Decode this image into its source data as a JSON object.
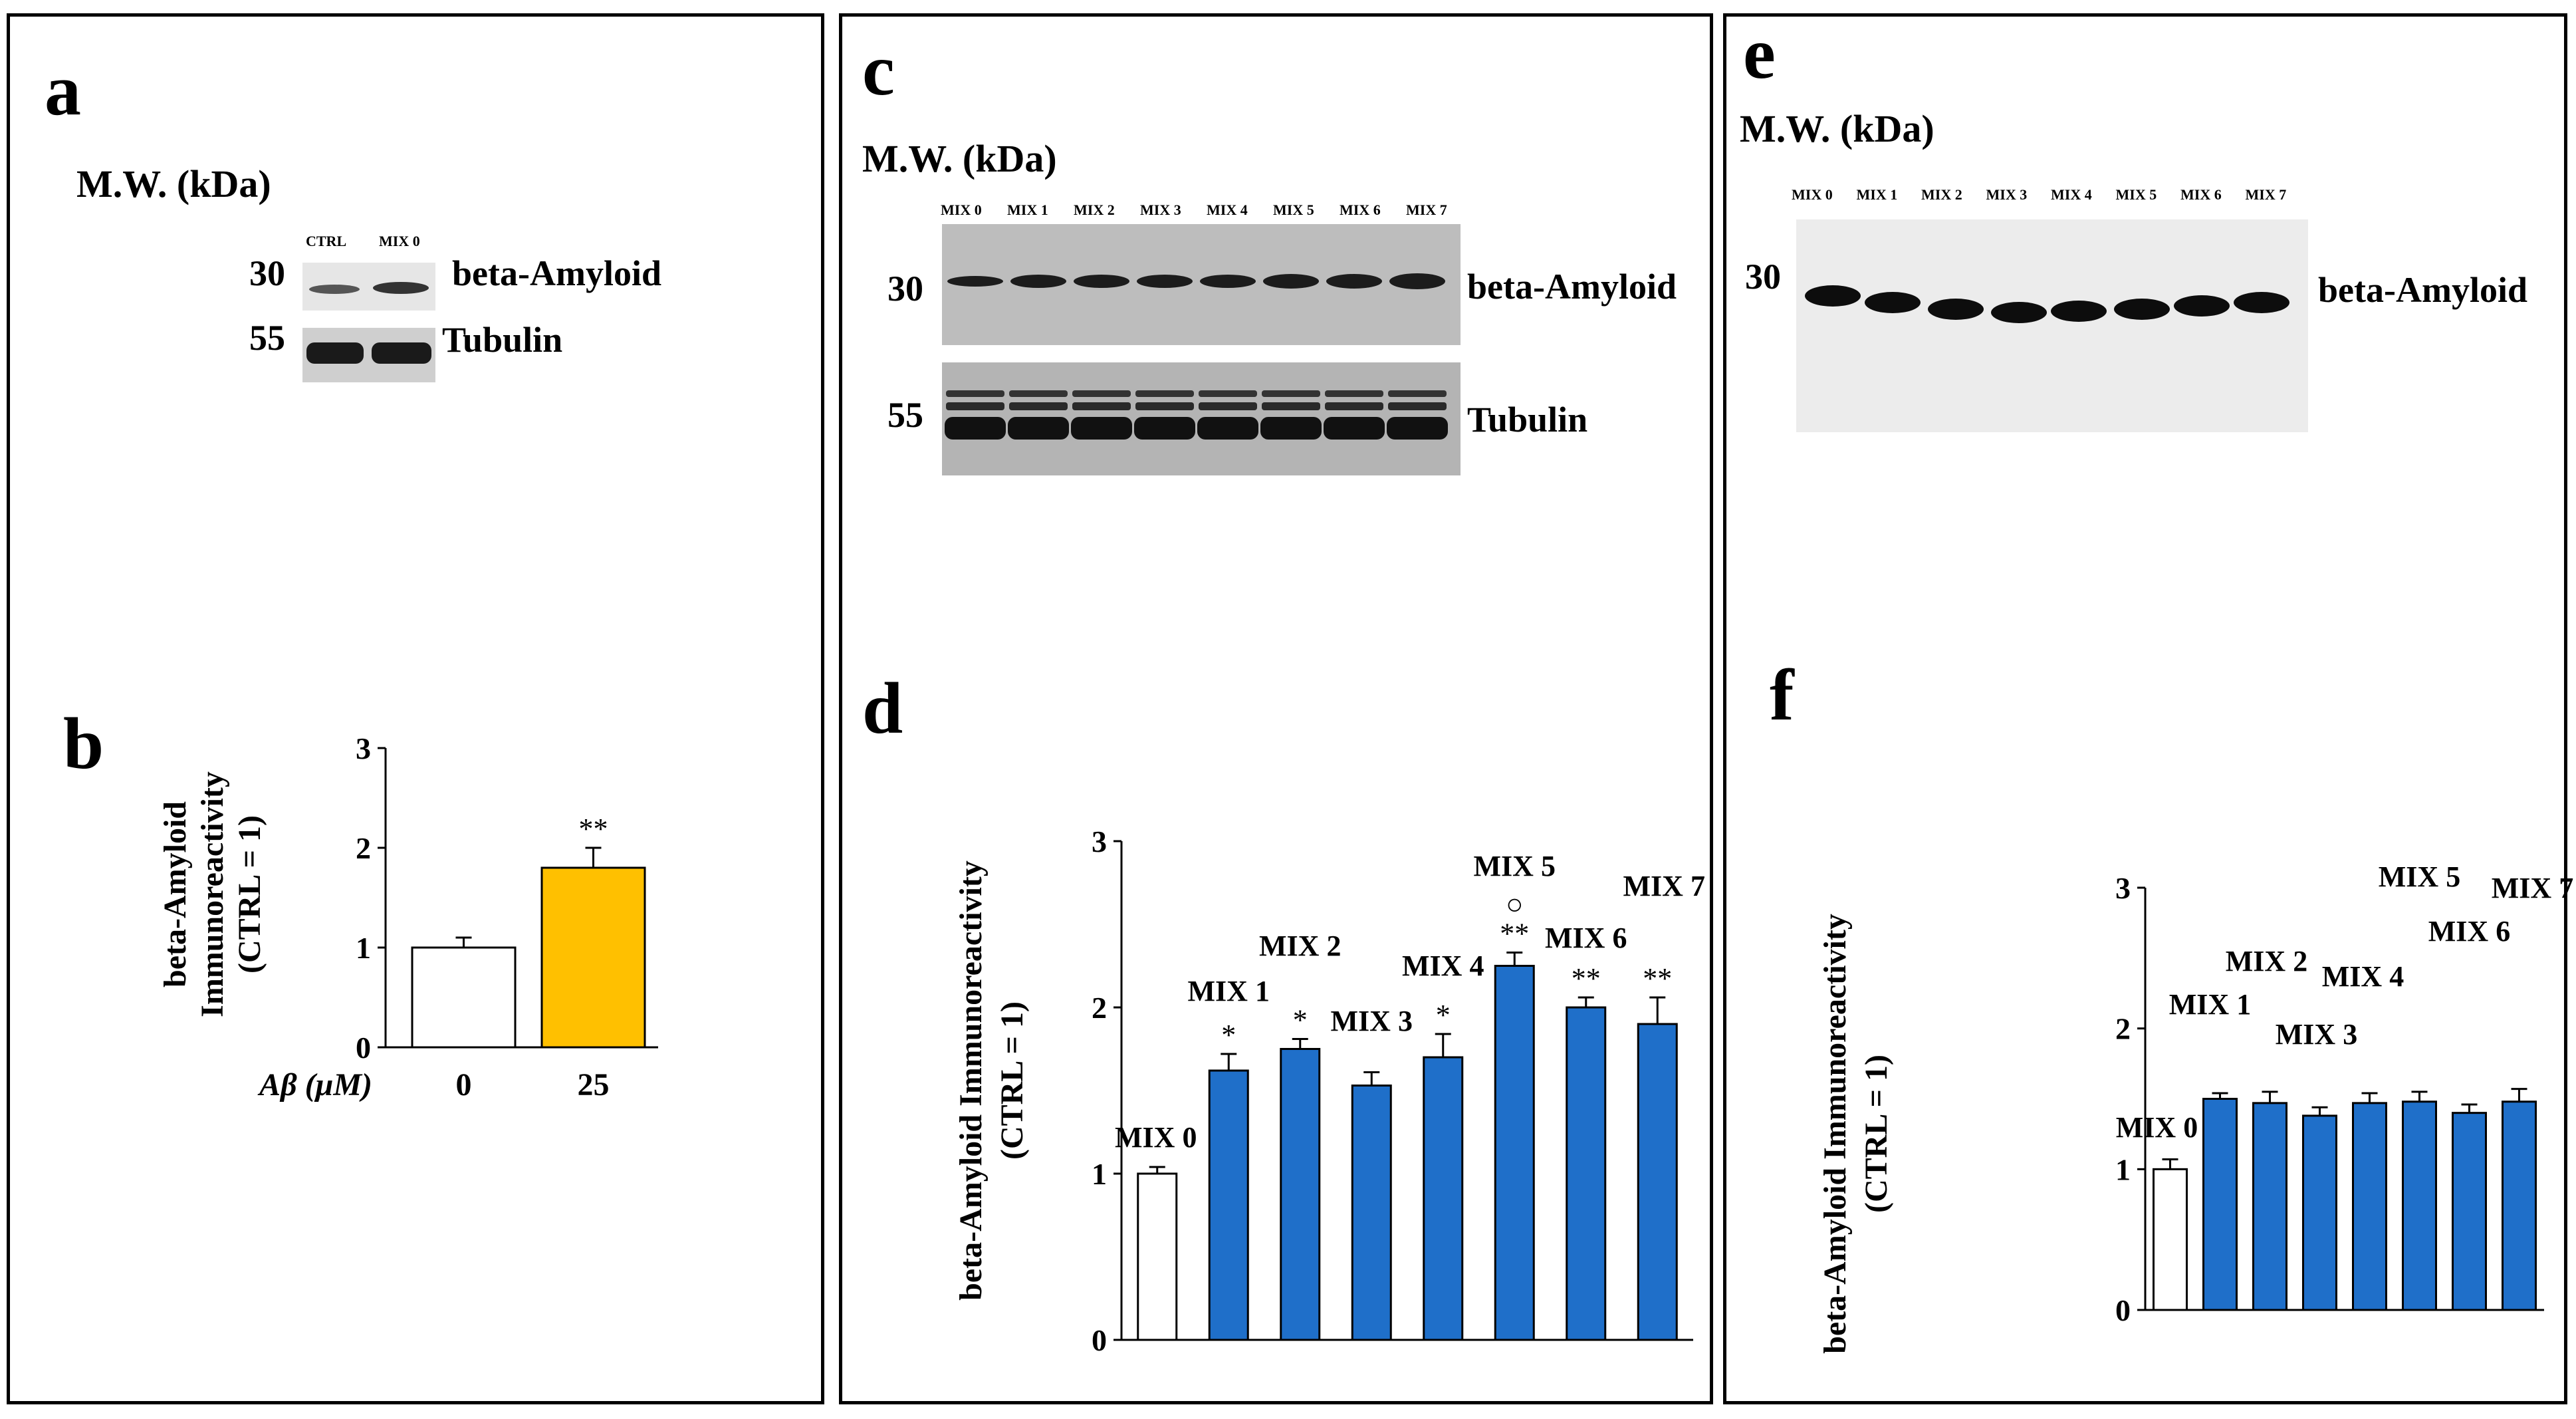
{
  "panels": {
    "a": {
      "letter": "a",
      "mw_header": "M.W.  (kDa)",
      "lanes": [
        "CTRL",
        "MIX 0"
      ],
      "mw_values": [
        "30",
        "55"
      ],
      "proteins": [
        "beta-Amyloid",
        "Tubulin"
      ]
    },
    "b": {
      "letter": "b"
    },
    "c": {
      "letter": "c",
      "mw_header": "M.W.  (kDa)",
      "lanes": [
        "MIX 0",
        "MIX 1",
        "MIX 2",
        "MIX 3",
        "MIX 4",
        "MIX 5",
        "MIX 6",
        "MIX 7"
      ],
      "mw_values": [
        "30",
        "55"
      ],
      "proteins": [
        "beta-Amyloid",
        "Tubulin"
      ]
    },
    "d": {
      "letter": "d"
    },
    "e": {
      "letter": "e",
      "mw_header": "M.W.  (kDa)",
      "lanes": [
        "MIX 0",
        "MIX 1",
        "MIX 2",
        "MIX 3",
        "MIX 4",
        "MIX 5",
        "MIX 6",
        "MIX 7"
      ],
      "mw_values": [
        "30"
      ],
      "proteins": [
        "beta-Amyloid"
      ]
    },
    "f": {
      "letter": "f"
    }
  },
  "colors": {
    "orange": "#FFC000",
    "blue": "#1F6FC9",
    "control": "#FFFFFF",
    "stroke": "#000000"
  },
  "chart_data": [
    {
      "panel": "b",
      "type": "bar",
      "title": "",
      "ylabel": [
        "beta-Amyloid",
        "Immunoreactivity",
        "(CTRL = 1)"
      ],
      "xlabel": "Aβ (μM)",
      "categories": [
        "0",
        "25"
      ],
      "values": [
        1.0,
        1.8
      ],
      "errors": [
        0.1,
        0.2
      ],
      "annotations": [
        "",
        "**"
      ],
      "ylim": [
        0,
        3
      ],
      "yticks": [
        "0",
        "1",
        "2",
        "3"
      ],
      "bar_colors": [
        "#FFFFFF",
        "#FFC000"
      ]
    },
    {
      "panel": "d",
      "type": "bar",
      "title": "",
      "ylabel": [
        "beta-Amyloid Immunoreactivity",
        "(CTRL = 1)"
      ],
      "categories": [
        "MIX 0",
        "MIX 1",
        "MIX 2",
        "MIX 3",
        "MIX 4",
        "MIX 5",
        "MIX 6",
        "MIX 7"
      ],
      "values": [
        1.0,
        1.62,
        1.75,
        1.53,
        1.7,
        2.25,
        2.0,
        1.9
      ],
      "errors": [
        0.04,
        0.1,
        0.06,
        0.08,
        0.14,
        0.08,
        0.06,
        0.16
      ],
      "annotations": [
        "",
        "*",
        "*",
        "",
        "*",
        "○ **",
        "**",
        "**"
      ],
      "ylim": [
        0,
        3
      ],
      "yticks": [
        "0",
        "1",
        "2",
        "3"
      ],
      "bar_colors": [
        "#FFFFFF",
        "#1F6FC9",
        "#1F6FC9",
        "#1F6FC9",
        "#1F6FC9",
        "#1F6FC9",
        "#1F6FC9",
        "#1F6FC9"
      ]
    },
    {
      "panel": "f",
      "type": "bar",
      "title": "",
      "ylabel": [
        "beta-Amyloid Immunoreactivity",
        "(CTRL = 1)"
      ],
      "categories": [
        "MIX 0",
        "MIX 1",
        "MIX 2",
        "MIX 3",
        "MIX 4",
        "MIX 5",
        "MIX 6",
        "MIX 7"
      ],
      "values": [
        1.0,
        1.5,
        1.47,
        1.38,
        1.47,
        1.48,
        1.4,
        1.48
      ],
      "errors": [
        0.07,
        0.04,
        0.08,
        0.06,
        0.07,
        0.07,
        0.06,
        0.09
      ],
      "annotations": [
        "",
        "",
        "",
        "",
        "",
        "",
        "",
        ""
      ],
      "ylim": [
        0,
        3
      ],
      "yticks": [
        "0",
        "1",
        "2",
        "3"
      ],
      "bar_colors": [
        "#FFFFFF",
        "#1F6FC9",
        "#1F6FC9",
        "#1F6FC9",
        "#1F6FC9",
        "#1F6FC9",
        "#1F6FC9",
        "#1F6FC9"
      ]
    }
  ]
}
